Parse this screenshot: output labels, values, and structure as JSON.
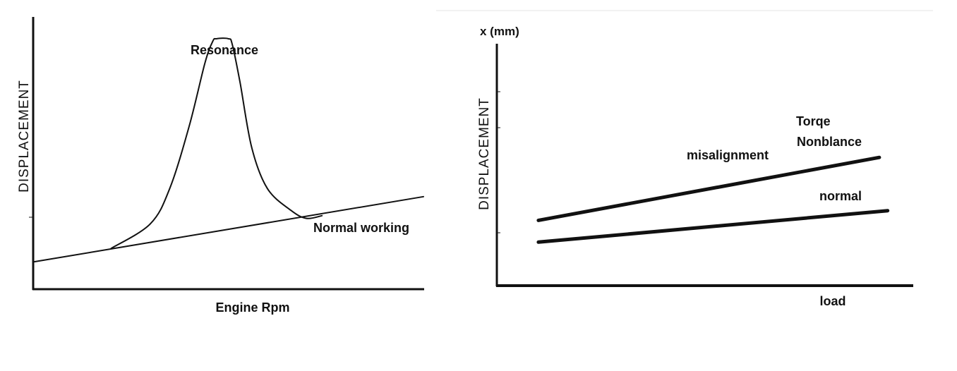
{
  "chart_data": [
    {
      "type": "line",
      "title": "",
      "xlabel": "Engine Rpm",
      "ylabel": "DISPLACEMENT",
      "annotations": [
        "Resonance",
        "Normal working"
      ],
      "series": [
        {
          "name": "Normal working",
          "x": [
            0,
            100
          ],
          "y": [
            10,
            34
          ]
        },
        {
          "name": "Resonance",
          "x": [
            20,
            30,
            35,
            40,
            44,
            46,
            47,
            50,
            51,
            53,
            56,
            60,
            66,
            70,
            74
          ],
          "y": [
            15,
            24,
            37,
            60,
            83,
            91,
            92,
            92,
            90,
            76,
            52,
            37,
            29,
            26,
            27
          ]
        }
      ],
      "xlim": [
        0,
        100
      ],
      "ylim": [
        0,
        100
      ],
      "grid": false
    },
    {
      "type": "line",
      "title": "",
      "xlabel": "load",
      "ylabel": "DISPLACEMENT",
      "y_unit_label": "x (mm)",
      "annotations": [
        "Torqe",
        "Nonblance",
        "misalignment",
        "normal"
      ],
      "series": [
        {
          "name": "misalignment",
          "x": [
            10,
            92
          ],
          "y": [
            27,
            53
          ]
        },
        {
          "name": "normal",
          "x": [
            10,
            94
          ],
          "y": [
            18,
            31
          ]
        }
      ],
      "xlim": [
        0,
        100
      ],
      "ylim": [
        0,
        100
      ],
      "grid": false
    }
  ]
}
